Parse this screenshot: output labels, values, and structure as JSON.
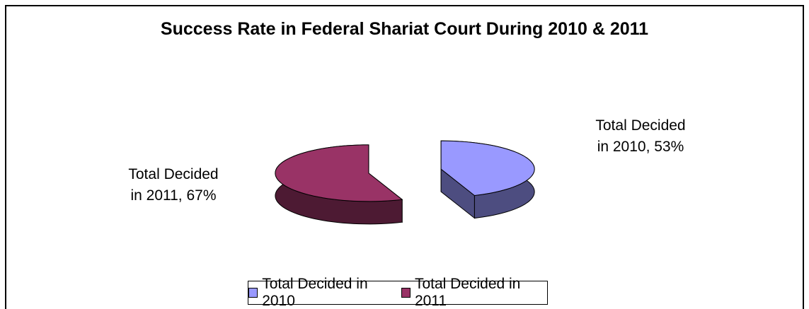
{
  "chart_data": {
    "type": "pie3d",
    "title": "Success Rate in Federal Shariat Court During 2010 & 2011",
    "categories": [
      "Total Decided in 2010",
      "Total Decided in 2011"
    ],
    "values": [
      53,
      67
    ],
    "value_labels": [
      "Total Decided in 2010, 53%",
      "Total Decided in 2011, 67%"
    ],
    "colors": [
      "#9999ff",
      "#993366"
    ],
    "legend": "bottom"
  }
}
